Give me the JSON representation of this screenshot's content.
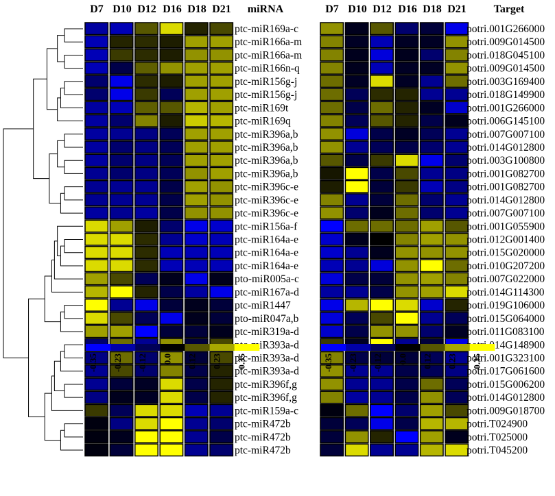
{
  "chart_data": [
    {
      "type": "heatmap",
      "name": "miRNA expression",
      "columns": [
        "D7",
        "D10",
        "D12",
        "D16",
        "D18",
        "D21"
      ],
      "column_title": "miRNA",
      "rows": [
        "ptc-miR169a-c",
        "ptc-miR166a-m",
        "ptc-miR166a-m",
        "ptc-miR166n-q",
        "ptc-miR156g-j",
        "ptc-miR156g-j",
        "ptc-miR169t",
        "ptc-miR169q",
        "ptc-miR396a,b",
        "ptc-miR396a,b",
        "ptc-miR396a,b",
        "ptc-miR396a,b",
        "ptc-miR396c-e",
        "ptc-miR396c-e",
        "ptc-miR396c-e",
        "ptc-miR156a-f",
        "ptc-miR164a-e",
        "ptc-miR164a-e",
        "ptc-miR164a-e",
        "pto-miR005a-c",
        "ptc-miR167a-d",
        "ptc-miR1447",
        "pto-miR047a,b",
        "ptc-miR319a-d",
        "ptc-miR393a-d",
        "ptc-miR393a-d",
        "ptc-miR393a-d",
        "ptc-miR396f,g",
        "ptc-miR396f,g",
        "ptc-miR159a-c",
        "ptc-miR472b",
        "ptc-miR472b",
        "ptc-miR472b"
      ],
      "values": [
        [
          -0.22,
          -0.25,
          0.12,
          0.3,
          0.05,
          0.1
        ],
        [
          -0.25,
          0.05,
          0.06,
          0.04,
          0.22,
          0.22
        ],
        [
          -0.25,
          0.08,
          0.06,
          0.04,
          0.2,
          0.2
        ],
        [
          -0.25,
          -0.1,
          0.13,
          0.2,
          0.22,
          0.22
        ],
        [
          -0.15,
          -0.32,
          0.06,
          0.04,
          0.22,
          0.22
        ],
        [
          -0.15,
          -0.32,
          0.08,
          -0.12,
          0.22,
          0.22
        ],
        [
          -0.22,
          -0.25,
          0.13,
          0.12,
          0.25,
          0.22
        ],
        [
          -0.22,
          -0.15,
          0.18,
          0.04,
          0.28,
          0.25
        ],
        [
          -0.22,
          -0.2,
          -0.18,
          -0.12,
          0.22,
          0.22
        ],
        [
          -0.22,
          -0.15,
          -0.18,
          -0.12,
          0.22,
          0.22
        ],
        [
          -0.22,
          -0.15,
          -0.18,
          -0.12,
          0.22,
          0.22
        ],
        [
          -0.2,
          -0.15,
          -0.18,
          -0.12,
          0.2,
          0.22
        ],
        [
          -0.2,
          -0.2,
          -0.2,
          -0.1,
          0.22,
          0.2
        ],
        [
          -0.2,
          -0.2,
          -0.2,
          -0.1,
          0.22,
          0.2
        ],
        [
          -0.22,
          -0.2,
          -0.22,
          -0.1,
          0.2,
          0.2
        ],
        [
          0.3,
          0.22,
          0.04,
          -0.15,
          -0.32,
          -0.28
        ],
        [
          0.3,
          0.3,
          0.06,
          -0.2,
          -0.28,
          -0.25
        ],
        [
          0.3,
          0.3,
          0.06,
          -0.25,
          -0.25,
          -0.25
        ],
        [
          0.3,
          0.3,
          0.06,
          -0.25,
          -0.25,
          -0.25
        ],
        [
          0.22,
          0.1,
          -0.12,
          -0.04,
          -0.32,
          -0.04
        ],
        [
          0.25,
          0.35,
          0.05,
          -0.1,
          -0.22,
          -0.32
        ],
        [
          0.35,
          -0.2,
          -0.32,
          -0.08,
          -0.04,
          -0.08
        ],
        [
          0.3,
          0.1,
          -0.12,
          -0.32,
          -0.04,
          -0.08
        ],
        [
          0.22,
          0.22,
          -0.35,
          -0.08,
          -0.08,
          -0.04
        ],
        [
          -0.15,
          0.15,
          -0.2,
          0.2,
          -0.08,
          0.1
        ],
        [
          -0.18,
          0.15,
          -0.15,
          0.2,
          -0.08,
          0.1
        ],
        [
          -0.2,
          0.1,
          -0.15,
          0.18,
          -0.1,
          0.05
        ],
        [
          -0.2,
          -0.08,
          -0.05,
          0.3,
          -0.1,
          0.05
        ],
        [
          -0.18,
          -0.04,
          -0.05,
          0.3,
          -0.1,
          0.05
        ],
        [
          0.08,
          -0.12,
          0.3,
          0.3,
          -0.25,
          -0.2
        ],
        [
          -0.02,
          -0.18,
          0.3,
          0.35,
          -0.2,
          -0.15
        ],
        [
          -0.02,
          -0.04,
          0.35,
          0.35,
          -0.2,
          -0.1
        ],
        [
          -0.02,
          -0.08,
          0.35,
          0.35,
          -0.2,
          -0.15
        ]
      ],
      "colorbar": {
        "ticks": [
          "-0.35",
          "-0.23",
          "-0.12",
          "0.0",
          "0.12",
          "0.23",
          "0.35"
        ],
        "range": [
          -0.35,
          0.35
        ]
      }
    },
    {
      "type": "heatmap",
      "name": "target expression",
      "columns": [
        "D7",
        "D10",
        "D12",
        "D16",
        "D18",
        "D21"
      ],
      "column_title": "Target",
      "rows": [
        "potri.001G266000",
        "potri.009G014500",
        "potri.018G045100",
        "potri.009G014500",
        "potri.003G169400",
        "potri.018G149900",
        "potri.001G266000",
        "potri.006G145100",
        "potri.007G007100",
        "potri.014G012800",
        "potri.003G100800",
        "potri.001G082700",
        "potri.001G082700",
        "potri.014G012800",
        "potri.007G007100",
        "potri.001G055900",
        "potri.012G001400",
        "potri.015G020000",
        "potri.010G207200",
        "potri.007G022000",
        "potri.014G114300",
        "potri.019G106000",
        "potri.015G064000",
        "potri.011G083100",
        "potri.014G148900",
        "potri.001G323100",
        "potri.017G061600",
        "potri.015G006200",
        "potri.014G012800",
        "potri.009G018700",
        "potri.T024900",
        "potri.T025000",
        "potri.T045200"
      ],
      "values": [
        [
          0.2,
          -0.04,
          0.12,
          -0.15,
          -0.08,
          -0.32
        ],
        [
          0.18,
          -0.05,
          -0.25,
          -0.05,
          -0.05,
          0.2
        ],
        [
          0.18,
          -0.04,
          -0.3,
          -0.04,
          -0.15,
          0.18
        ],
        [
          0.18,
          -0.04,
          -0.25,
          -0.05,
          -0.05,
          0.2
        ],
        [
          0.15,
          -0.05,
          0.3,
          -0.05,
          -0.2,
          0.15
        ],
        [
          0.15,
          -0.12,
          0.06,
          0.05,
          -0.2,
          -0.2
        ],
        [
          0.15,
          -0.1,
          0.15,
          0.05,
          -0.05,
          -0.28
        ],
        [
          0.18,
          -0.12,
          0.12,
          0.05,
          -0.1,
          -0.04
        ],
        [
          0.2,
          -0.3,
          -0.1,
          -0.05,
          -0.12,
          -0.2
        ],
        [
          0.2,
          -0.2,
          -0.12,
          -0.1,
          -0.15,
          -0.2
        ],
        [
          0.12,
          -0.1,
          0.08,
          0.3,
          -0.32,
          -0.15
        ],
        [
          0.03,
          0.35,
          -0.1,
          0.1,
          -0.2,
          -0.18
        ],
        [
          0.04,
          0.35,
          -0.08,
          0.08,
          -0.25,
          -0.18
        ],
        [
          0.18,
          -0.2,
          -0.08,
          0.15,
          -0.15,
          -0.2
        ],
        [
          0.2,
          -0.15,
          -0.04,
          0.15,
          -0.15,
          -0.2
        ],
        [
          -0.35,
          0.15,
          0.15,
          0.15,
          0.22,
          0.12
        ],
        [
          -0.28,
          -0.04,
          0.0,
          0.18,
          0.22,
          0.2
        ],
        [
          -0.28,
          -0.2,
          -0.04,
          0.2,
          0.2,
          0.2
        ],
        [
          -0.25,
          -0.2,
          -0.3,
          0.2,
          0.35,
          0.15
        ],
        [
          -0.3,
          -0.1,
          -0.08,
          0.2,
          0.22,
          0.18
        ],
        [
          -0.22,
          -0.2,
          -0.1,
          0.2,
          0.22,
          0.3
        ],
        [
          -0.32,
          0.25,
          0.35,
          0.3,
          -0.28,
          0.05
        ],
        [
          -0.3,
          -0.12,
          0.1,
          0.35,
          -0.2,
          -0.12
        ],
        [
          -0.28,
          -0.1,
          0.2,
          0.2,
          -0.15,
          -0.05
        ],
        [
          0.08,
          -0.05,
          0.35,
          -0.2,
          -0.08,
          -0.32
        ],
        [
          0.18,
          -0.1,
          -0.08,
          -0.08,
          -0.12,
          -0.2
        ],
        [
          0.2,
          -0.2,
          -0.2,
          -0.1,
          -0.12,
          -0.18
        ],
        [
          0.2,
          -0.2,
          -0.2,
          -0.1,
          0.15,
          -0.12
        ],
        [
          0.18,
          -0.22,
          -0.2,
          -0.1,
          0.2,
          -0.12
        ],
        [
          -0.02,
          0.15,
          -0.35,
          -0.15,
          0.22,
          0.1
        ],
        [
          -0.08,
          -0.12,
          -0.32,
          -0.1,
          0.25,
          0.25
        ],
        [
          -0.08,
          0.2,
          0.05,
          -0.35,
          0.22,
          -0.04
        ],
        [
          -0.08,
          0.3,
          -0.2,
          -0.2,
          0.25,
          0.3
        ]
      ],
      "colorbar": {
        "ticks": [
          "-0.35",
          "-0.23",
          "-0.12",
          "0.0",
          "0.12",
          "0.23",
          "0.35"
        ],
        "range": [
          -0.35,
          0.35
        ]
      }
    }
  ],
  "dendrogram": {
    "side": "left",
    "merges": [
      [
        0,
        1
      ],
      [
        2,
        3
      ],
      [
        34,
        33
      ],
      [
        4,
        5
      ],
      [
        36,
        6
      ],
      [
        37,
        7
      ],
      [
        35,
        38
      ],
      [
        8,
        9
      ],
      [
        10,
        11
      ],
      [
        40,
        41
      ],
      [
        12,
        13
      ],
      [
        43,
        14
      ],
      [
        42,
        44
      ],
      [
        39,
        45
      ],
      [
        16,
        17
      ],
      [
        47,
        18
      ],
      [
        15,
        48
      ],
      [
        49,
        19
      ],
      [
        50,
        20
      ],
      [
        21,
        22
      ],
      [
        52,
        23
      ],
      [
        51,
        53
      ],
      [
        24,
        25
      ],
      [
        55,
        26
      ],
      [
        27,
        28
      ],
      [
        56,
        57
      ],
      [
        30,
        31
      ],
      [
        59,
        32
      ],
      [
        58,
        29
      ],
      [
        61,
        60
      ],
      [
        54,
        62
      ],
      [
        46,
        63
      ]
    ]
  },
  "colors": {
    "low": "#0000ff",
    "mid": "#000000",
    "high": "#ffff00",
    "cell_border": "#000000",
    "background": "#ffffff"
  }
}
